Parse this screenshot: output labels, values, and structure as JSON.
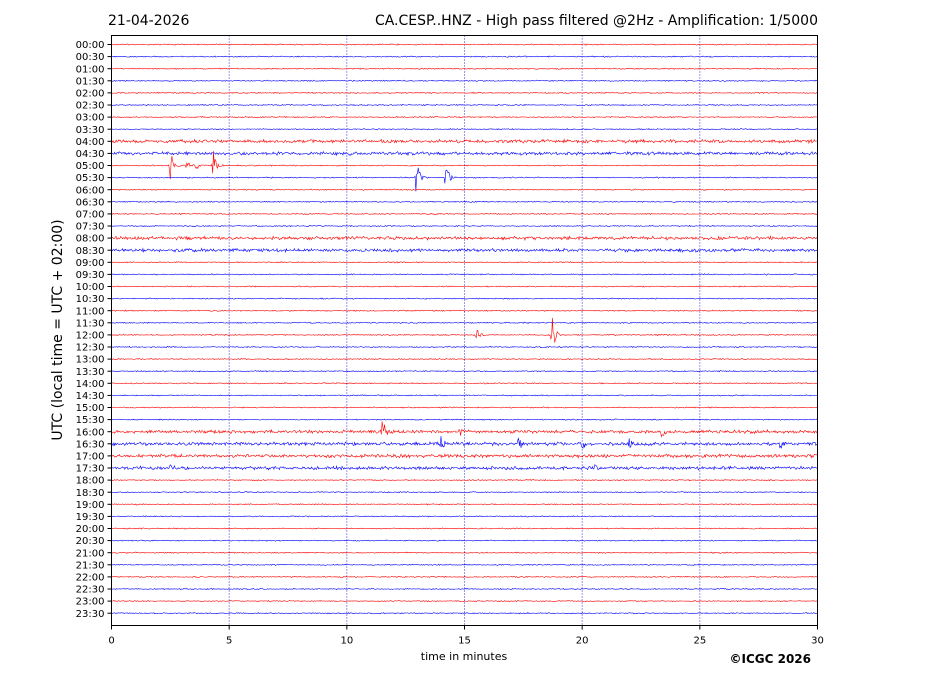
{
  "header": {
    "date": "21-04-2026",
    "title": "CA.CESP..HNZ - High pass filtered @2Hz - Amplification: 1/5000"
  },
  "footer": {
    "copyright": "©ICGC 2026"
  },
  "colors": {
    "red_trace": "#ff0000",
    "blue_trace": "#0000ff",
    "grid": "#0000cc",
    "frame": "#000000"
  },
  "chart_data": {
    "type": "line",
    "subtype": "helicorder",
    "xlabel": "time in minutes",
    "ylabel": "UTC (local time = UTC + 02:00)",
    "xlim": [
      0,
      30
    ],
    "x_ticks": [
      0,
      5,
      10,
      15,
      20,
      25,
      30
    ],
    "vertical_gridlines": [
      5,
      10,
      15,
      20,
      25
    ],
    "grid": "vertical dotted lines",
    "trace_colors": "alternating red / blue by row",
    "rows": [
      "00:00",
      "00:30",
      "01:00",
      "01:30",
      "02:00",
      "02:30",
      "03:00",
      "03:30",
      "04:00",
      "04:30",
      "05:00",
      "05:30",
      "06:00",
      "06:30",
      "07:00",
      "07:30",
      "08:00",
      "08:30",
      "09:00",
      "09:30",
      "10:00",
      "10:30",
      "11:00",
      "11:30",
      "12:00",
      "12:30",
      "13:00",
      "13:30",
      "14:00",
      "14:30",
      "15:00",
      "15:30",
      "16:00",
      "16:30",
      "17:00",
      "17:30",
      "18:00",
      "18:30",
      "19:00",
      "19:30",
      "20:00",
      "20:30",
      "21:00",
      "21:30",
      "22:00",
      "22:30",
      "23:00",
      "23:30"
    ],
    "events": [
      {
        "row": "05:00",
        "minute": 2.5,
        "amplitude": 0.9
      },
      {
        "row": "05:00",
        "minute": 3.2,
        "amplitude": 0.25
      },
      {
        "row": "05:00",
        "minute": 3.6,
        "amplitude": 0.3
      },
      {
        "row": "05:00",
        "minute": 4.3,
        "amplitude": 1.0
      },
      {
        "row": "05:30",
        "minute": 12.95,
        "amplitude": 1.0
      },
      {
        "row": "05:30",
        "minute": 14.2,
        "amplitude": 1.1
      },
      {
        "row": "12:00",
        "minute": 15.5,
        "amplitude": 0.4
      },
      {
        "row": "12:00",
        "minute": 18.7,
        "amplitude": 1.3
      },
      {
        "row": "16:00",
        "minute": 11.5,
        "amplitude": 0.75
      },
      {
        "row": "16:00",
        "minute": 14.8,
        "amplitude": 0.45
      },
      {
        "row": "16:00",
        "minute": 23.4,
        "amplitude": 0.35
      },
      {
        "row": "16:30",
        "minute": 14.0,
        "amplitude": 0.35
      },
      {
        "row": "16:30",
        "minute": 17.3,
        "amplitude": 0.45
      },
      {
        "row": "16:30",
        "minute": 20.0,
        "amplitude": 0.3
      },
      {
        "row": "16:30",
        "minute": 22.0,
        "amplitude": 0.35
      },
      {
        "row": "16:30",
        "minute": 28.4,
        "amplitude": 0.3
      },
      {
        "row": "17:30",
        "minute": 2.5,
        "amplitude": 0.15
      },
      {
        "row": "17:30",
        "minute": 20.5,
        "amplitude": 0.15
      }
    ],
    "noisy_rows": [
      "04:00",
      "04:30",
      "08:00",
      "08:30",
      "16:00",
      "16:30",
      "17:00",
      "17:30"
    ]
  }
}
